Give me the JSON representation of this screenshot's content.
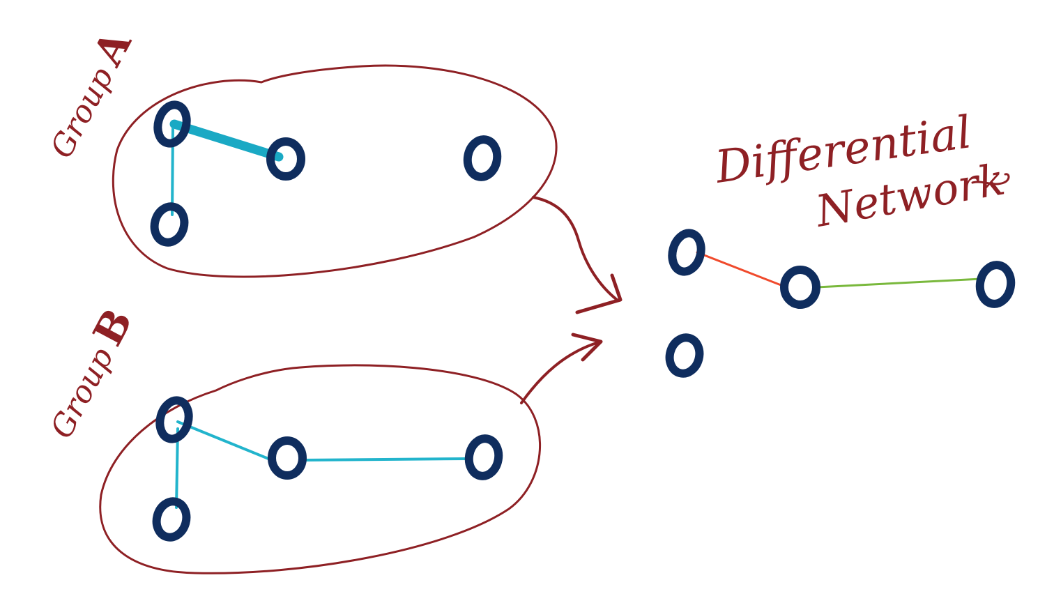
{
  "colors": {
    "ink_red": "#8e2024",
    "node_navy": "#0f2d5e",
    "edge_cyan": "#22b4cc",
    "edge_cyan_thick": "#1aa9c4",
    "edge_red": "#f04a2c",
    "edge_green": "#79b83c"
  },
  "group_a": {
    "label_word": "Group",
    "label_letter": "A",
    "nodes": [
      "a1",
      "a2",
      "a3",
      "a4"
    ],
    "edges": [
      {
        "from": "a1",
        "to": "a2",
        "weight": "thick"
      },
      {
        "from": "a1",
        "to": "a3",
        "weight": "thin"
      }
    ]
  },
  "group_b": {
    "label_word": "Group",
    "label_letter": "B",
    "nodes": [
      "b1",
      "b2",
      "b3",
      "b4"
    ],
    "edges": [
      {
        "from": "b1",
        "to": "b2",
        "weight": "thin"
      },
      {
        "from": "b2",
        "to": "b4",
        "weight": "thin"
      },
      {
        "from": "b1",
        "to": "b3",
        "weight": "thin"
      }
    ]
  },
  "differential": {
    "title_line1": "Differential",
    "title_line2": "Network",
    "nodes": [
      "d1",
      "d2",
      "d3",
      "d4"
    ],
    "edges": [
      {
        "from": "d1",
        "to": "d2",
        "change": "decrease",
        "color_key": "edge_red"
      },
      {
        "from": "d2",
        "to": "d3",
        "change": "increase",
        "color_key": "edge_green"
      }
    ]
  }
}
